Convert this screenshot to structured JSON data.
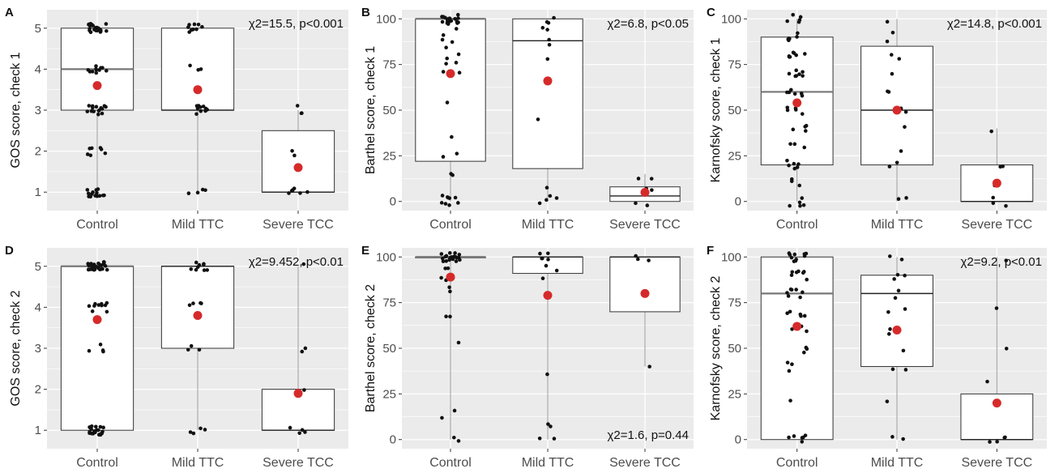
{
  "chart_data": [
    {
      "panel": "A",
      "type": "boxplot",
      "ylabel": "GOS score, check 1",
      "categories": [
        "Control",
        "Mild TTC",
        "Severe TCC"
      ],
      "ylim": [
        0.55,
        5.45
      ],
      "yticks": [
        1,
        2,
        3,
        4,
        5
      ],
      "annotation": "χ2=15.5, p<0.001",
      "annotation_position": "top-right",
      "boxes": [
        {
          "q1": 3,
          "median": 4,
          "q3": 5,
          "mean": 3.6
        },
        {
          "q1": 3,
          "median": 3,
          "q3": 5,
          "mean": 3.5
        },
        {
          "q1": 1,
          "median": 1,
          "q3": 2.5,
          "mean": 1.6
        }
      ],
      "points": [
        {
          "x": 0,
          "y": [
            5,
            5,
            5,
            5,
            5,
            5,
            5,
            5,
            5,
            5,
            5,
            5,
            5,
            5,
            5,
            5,
            5,
            5,
            5,
            5,
            5,
            5,
            5,
            5,
            4,
            4,
            4,
            4,
            4,
            4,
            4,
            4,
            4,
            4,
            4,
            3,
            3,
            3,
            3,
            3,
            3,
            3,
            3,
            3,
            3,
            3,
            3,
            3,
            3,
            3,
            2,
            2,
            2,
            2,
            2,
            2,
            2,
            1,
            1,
            1,
            1,
            1,
            1,
            1,
            1,
            1,
            1,
            1,
            1,
            1,
            1
          ]
        },
        {
          "x": 1,
          "y": [
            5,
            5,
            5,
            5,
            5,
            5,
            5,
            5,
            5,
            4,
            4,
            4,
            3,
            3,
            3,
            3,
            3,
            3,
            3,
            3,
            3,
            3,
            1,
            1,
            1,
            1
          ]
        },
        {
          "x": 2,
          "y": [
            3,
            3,
            3,
            2,
            2,
            1,
            1,
            1,
            1,
            1,
            1
          ]
        }
      ]
    },
    {
      "panel": "B",
      "type": "boxplot",
      "ylabel": "Barthel score, check 1",
      "categories": [
        "Control",
        "Mild TTC",
        "Severe TCC"
      ],
      "ylim": [
        -5,
        105
      ],
      "yticks": [
        0,
        25,
        50,
        75,
        100
      ],
      "annotation": "χ2=6.8, p<0.05",
      "annotation_position": "top-right",
      "boxes": [
        {
          "q1": 22,
          "median": 100,
          "q3": 100,
          "mean": 70
        },
        {
          "q1": 18,
          "median": 88,
          "q3": 100,
          "mean": 66
        },
        {
          "q1": 0,
          "median": 3,
          "q3": 8,
          "mean": 5
        }
      ],
      "points": [
        {
          "x": 0,
          "y": [
            100,
            100,
            100,
            100,
            100,
            100,
            100,
            100,
            100,
            100,
            100,
            100,
            100,
            100,
            100,
            100,
            100,
            100,
            100,
            95,
            95,
            90,
            90,
            85,
            85,
            80,
            80,
            75,
            75,
            70,
            70,
            55,
            35,
            25,
            25,
            15,
            15,
            5,
            0,
            0,
            0,
            0,
            0,
            0,
            0,
            0
          ]
        },
        {
          "x": 1,
          "y": [
            100,
            100,
            100,
            95,
            95,
            90,
            85,
            80,
            45,
            10,
            5,
            0,
            0,
            0
          ]
        },
        {
          "x": 2,
          "y": [
            15,
            10,
            5,
            5,
            0,
            0
          ]
        }
      ]
    },
    {
      "panel": "C",
      "type": "boxplot",
      "ylabel": "Karnofsky score, check 1",
      "categories": [
        "Control",
        "Mild TTC",
        "Severe TCC"
      ],
      "ylim": [
        -5,
        105
      ],
      "yticks": [
        0,
        25,
        50,
        75,
        100
      ],
      "annotation": "χ2=14.8, p<0.001",
      "annotation_position": "top-right",
      "boxes": [
        {
          "q1": 20,
          "median": 60,
          "q3": 90,
          "mean": 54
        },
        {
          "q1": 20,
          "median": 50,
          "q3": 85,
          "mean": 50
        },
        {
          "q1": 0,
          "median": 0,
          "q3": 20,
          "mean": 10
        }
      ],
      "points": [
        {
          "x": 0,
          "y": [
            100,
            100,
            100,
            100,
            100,
            90,
            90,
            90,
            90,
            90,
            90,
            80,
            80,
            80,
            80,
            80,
            80,
            80,
            70,
            70,
            70,
            70,
            70,
            70,
            70,
            60,
            60,
            60,
            60,
            60,
            60,
            50,
            50,
            50,
            50,
            50,
            40,
            40,
            40,
            40,
            30,
            30,
            30,
            20,
            20,
            20,
            20,
            20,
            20,
            10,
            10,
            10,
            0,
            0,
            0,
            0,
            0
          ]
        },
        {
          "x": 1,
          "y": [
            100,
            90,
            90,
            80,
            80,
            70,
            60,
            60,
            50,
            50,
            40,
            30,
            20,
            20,
            0,
            0
          ]
        },
        {
          "x": 2,
          "y": [
            40,
            20,
            20,
            10,
            0,
            0,
            0
          ]
        }
      ]
    },
    {
      "panel": "D",
      "type": "boxplot",
      "ylabel": "GOS score, check 2",
      "categories": [
        "Control",
        "Mild TTC",
        "Severe TCC"
      ],
      "ylim": [
        0.55,
        5.45
      ],
      "yticks": [
        1,
        2,
        3,
        4,
        5
      ],
      "annotation": "χ2=9.452, p<0.01",
      "annotation_position": "top-right",
      "boxes": [
        {
          "q1": 1,
          "median": 5,
          "q3": 5,
          "mean": 3.7
        },
        {
          "q1": 3,
          "median": 5,
          "q3": 5,
          "mean": 3.8
        },
        {
          "q1": 1,
          "median": 1,
          "q3": 2,
          "mean": 1.9
        }
      ],
      "points": [
        {
          "x": 0,
          "y": [
            5,
            5,
            5,
            5,
            5,
            5,
            5,
            5,
            5,
            5,
            5,
            5,
            5,
            5,
            5,
            5,
            5,
            5,
            5,
            5,
            5,
            5,
            5,
            5,
            5,
            5,
            5,
            5,
            5,
            5,
            4,
            4,
            4,
            4,
            4,
            4,
            4,
            4,
            4,
            4,
            3,
            3,
            3,
            3,
            1,
            1,
            1,
            1,
            1,
            1,
            1,
            1,
            1,
            1,
            1,
            1,
            1,
            1,
            1,
            1,
            1,
            1,
            1,
            1
          ]
        },
        {
          "x": 1,
          "y": [
            5,
            5,
            5,
            5,
            5,
            5,
            5,
            5,
            5,
            4,
            4,
            4,
            4,
            3,
            3,
            3,
            1,
            1,
            1,
            1
          ]
        },
        {
          "x": 2,
          "y": [
            5,
            3,
            3,
            2,
            1,
            1,
            1,
            1
          ]
        }
      ]
    },
    {
      "panel": "E",
      "type": "boxplot",
      "ylabel": "Barthel score, check 2",
      "categories": [
        "Control",
        "Mild TTC",
        "Severe TCC"
      ],
      "ylim": [
        -5,
        105
      ],
      "yticks": [
        0,
        25,
        50,
        75,
        100
      ],
      "annotation": "χ2=1.6, p=0.44",
      "annotation_position": "bottom-right",
      "boxes": [
        {
          "q1": 100,
          "median": 100,
          "q3": 100,
          "mean": 89
        },
        {
          "q1": 91,
          "median": 100,
          "q3": 100,
          "mean": 79
        },
        {
          "q1": 70,
          "median": 100,
          "q3": 100,
          "mean": 80
        }
      ],
      "points": [
        {
          "x": 0,
          "y": [
            100,
            100,
            100,
            100,
            100,
            100,
            100,
            100,
            100,
            100,
            100,
            100,
            100,
            100,
            100,
            100,
            100,
            100,
            100,
            100,
            95,
            95,
            90,
            90,
            85,
            85,
            80,
            65,
            65,
            55,
            15,
            10,
            0,
            0
          ]
        },
        {
          "x": 1,
          "y": [
            100,
            100,
            100,
            100,
            100,
            95,
            95,
            90,
            35,
            10,
            5,
            0,
            0
          ]
        },
        {
          "x": 2,
          "y": [
            100,
            100,
            100,
            40
          ]
        }
      ]
    },
    {
      "panel": "F",
      "type": "boxplot",
      "ylabel": "Karnofsky score, check 2",
      "categories": [
        "Control",
        "Mild TTC",
        "Severe TCC"
      ],
      "ylim": [
        -5,
        105
      ],
      "yticks": [
        0,
        25,
        50,
        75,
        100
      ],
      "annotation": "χ2=9.2, p<0.01",
      "annotation_position": "top-right",
      "boxes": [
        {
          "q1": 0,
          "median": 80,
          "q3": 100,
          "mean": 62
        },
        {
          "q1": 40,
          "median": 80,
          "q3": 90,
          "mean": 60
        },
        {
          "q1": 0,
          "median": 0,
          "q3": 25,
          "mean": 20
        }
      ],
      "points": [
        {
          "x": 0,
          "y": [
            100,
            100,
            100,
            100,
            100,
            100,
            100,
            100,
            100,
            100,
            90,
            90,
            90,
            90,
            90,
            90,
            90,
            80,
            80,
            80,
            80,
            80,
            80,
            80,
            70,
            70,
            70,
            70,
            70,
            60,
            60,
            60,
            60,
            50,
            50,
            50,
            40,
            40,
            40,
            20,
            0,
            0,
            0,
            0,
            0,
            0
          ]
        },
        {
          "x": 1,
          "y": [
            100,
            100,
            90,
            90,
            90,
            80,
            80,
            70,
            70,
            60,
            60,
            50,
            40,
            40,
            20,
            0,
            0
          ]
        },
        {
          "x": 2,
          "y": [
            100,
            70,
            50,
            30,
            0,
            0,
            0,
            0
          ]
        }
      ]
    }
  ],
  "colors": {
    "panel_bg": "#ebebeb",
    "grid": "#ffffff",
    "box_fill": "#ffffff",
    "box_stroke": "#333333",
    "median": "#777777",
    "point": "#111111",
    "mean": "#d62a2a",
    "axis_text": "#4d4d4d"
  }
}
